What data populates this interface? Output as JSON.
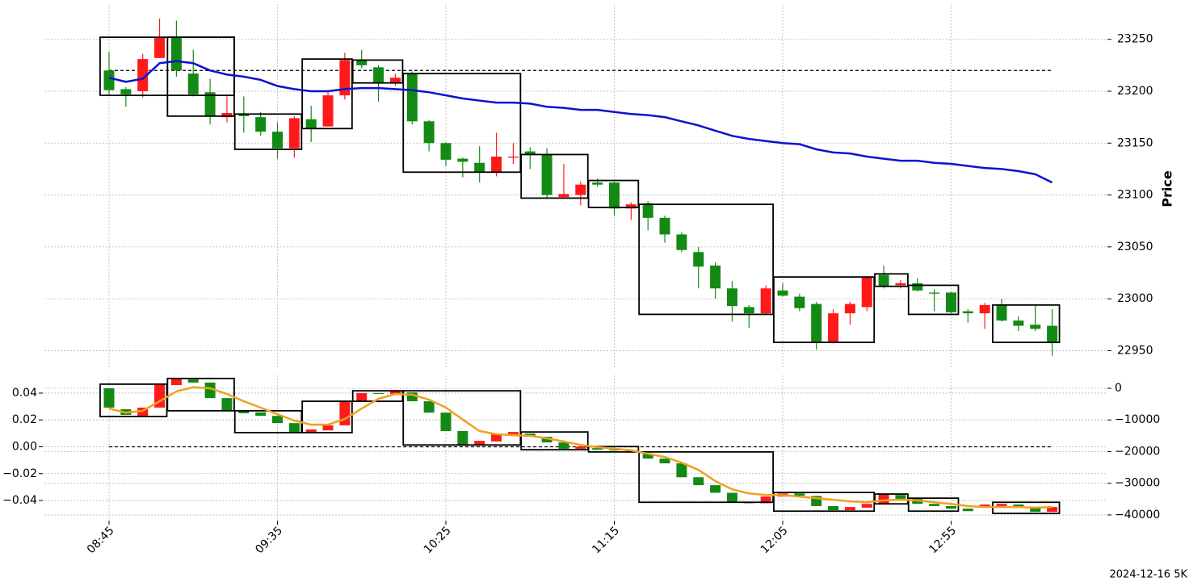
{
  "chart_data": [
    {
      "type": "candlestick",
      "ylabel": "Price",
      "ylim": [
        22934,
        23284
      ],
      "yticks": [
        22950,
        23000,
        23050,
        23100,
        23150,
        23200,
        23250
      ],
      "grid": true,
      "up_color": "#ff1a1a",
      "down_color": "#138a13",
      "open": [
        23220,
        23202,
        23200,
        23232,
        23252,
        23217,
        23199,
        23175,
        23178,
        23175,
        23161,
        23145,
        23173,
        23166,
        23196,
        23230,
        23223,
        23208,
        23217,
        23171,
        23150,
        23135,
        23131,
        23122,
        23136,
        23142,
        23139,
        23098,
        23100,
        23112,
        23112,
        23087,
        23092,
        23078,
        23062,
        23045,
        23032,
        23010,
        22992,
        22986,
        23008,
        23002,
        22995,
        22958,
        22986,
        22992,
        23023,
        23013,
        23015,
        23006,
        23006,
        22988,
        22986,
        22994,
        22979,
        22975,
        22974
      ],
      "high": [
        23238,
        23204,
        23236,
        23270,
        23268,
        23240,
        23212,
        23195,
        23195,
        23180,
        23170,
        23176,
        23186,
        23199,
        23237,
        23240,
        23225,
        23217,
        23219,
        23172,
        23151,
        23136,
        23147,
        23160,
        23150,
        23146,
        23145,
        23130,
        23113,
        23116,
        23113,
        23093,
        23094,
        23080,
        23064,
        23050,
        23035,
        23017,
        22994,
        23013,
        23015,
        23005,
        22997,
        22990,
        22997,
        23022,
        23032,
        23018,
        23020,
        23009,
        23007,
        22990,
        22996,
        23000,
        22983,
        22994,
        22990
      ],
      "low": [
        23196,
        23185,
        23194,
        23232,
        23214,
        23195,
        23168,
        23170,
        23160,
        23157,
        23135,
        23136,
        23151,
        23166,
        23192,
        23222,
        23190,
        23205,
        23168,
        23142,
        23128,
        23117,
        23112,
        23118,
        23130,
        23125,
        23097,
        23097,
        23090,
        23108,
        23080,
        23076,
        23066,
        23054,
        23045,
        23010,
        23000,
        22978,
        22972,
        22985,
        23002,
        22988,
        22951,
        22957,
        22975,
        22988,
        23010,
        23010,
        23007,
        22988,
        22986,
        22977,
        22971,
        22978,
        22969,
        22969,
        22945
      ],
      "close": [
        23201,
        23197,
        23231,
        23252,
        23220,
        23197,
        23176,
        23179,
        23176,
        23161,
        23145,
        23174,
        23164,
        23196,
        23230,
        23225,
        23208,
        23213,
        23171,
        23150,
        23134,
        23132,
        23122,
        23137,
        23137,
        23139,
        23100,
        23101,
        23110,
        23110,
        23087,
        23091,
        23078,
        23062,
        23047,
        23031,
        23010,
        22993,
        22986,
        23010,
        23003,
        22991,
        22958,
        22986,
        22995,
        23021,
        23012,
        23015,
        23008,
        23005,
        22987,
        22986,
        22994,
        22979,
        22974,
        22971,
        22958
      ],
      "line": {
        "color": "#1010d0",
        "values": [
          23213,
          23209,
          23212,
          23227,
          23229,
          23227,
          23220,
          23216,
          23214,
          23211,
          23205,
          23202,
          23200,
          23200,
          23202,
          23203,
          23203,
          23202,
          23201,
          23199,
          23196,
          23193,
          23191,
          23189,
          23189,
          23188,
          23185,
          23184,
          23182,
          23182,
          23180,
          23178,
          23177,
          23175,
          23171,
          23167,
          23162,
          23157,
          23154,
          23152,
          23150,
          23149,
          23144,
          23141,
          23140,
          23137,
          23135,
          23133,
          23133,
          23131,
          23130,
          23128,
          23126,
          23125,
          23123,
          23120,
          23112
        ]
      },
      "hline": {
        "value": 23220,
        "start": 0,
        "end": 56
      },
      "boxes": [
        {
          "start": 0,
          "end": 7,
          "top": 23252,
          "bottom": 23196
        },
        {
          "start": 4,
          "end": 7,
          "top": 23252,
          "bottom": 23176
        },
        {
          "start": 8,
          "end": 11,
          "top": 23178,
          "bottom": 23144
        },
        {
          "start": 12,
          "end": 14,
          "top": 23231,
          "bottom": 23164
        },
        {
          "start": 15,
          "end": 17,
          "top": 23230,
          "bottom": 23208
        },
        {
          "start": 18,
          "end": 24,
          "top": 23217,
          "bottom": 23122
        },
        {
          "start": 25,
          "end": 28,
          "top": 23139,
          "bottom": 23097
        },
        {
          "start": 29,
          "end": 31,
          "top": 23114,
          "bottom": 23088
        },
        {
          "start": 32,
          "end": 39,
          "top": 23091,
          "bottom": 22985
        },
        {
          "start": 40,
          "end": 45,
          "top": 23021,
          "bottom": 22958
        },
        {
          "start": 46,
          "end": 47,
          "top": 23024,
          "bottom": 23012
        },
        {
          "start": 48,
          "end": 50,
          "top": 23013,
          "bottom": 22985
        },
        {
          "start": 53,
          "end": 56,
          "top": 22994,
          "bottom": 22958
        }
      ]
    },
    {
      "type": "candlestick",
      "annotation": "2024-12-16 5K",
      "categories": [
        "08:45",
        null,
        null,
        null,
        null,
        null,
        null,
        null,
        null,
        null,
        "09:35",
        null,
        null,
        null,
        null,
        null,
        null,
        null,
        null,
        null,
        "10:25",
        null,
        null,
        null,
        null,
        null,
        null,
        null,
        null,
        null,
        "11:15",
        null,
        null,
        null,
        null,
        null,
        null,
        null,
        null,
        null,
        "12:05",
        null,
        null,
        null,
        null,
        null,
        null,
        null,
        null,
        null,
        "12:55",
        null,
        null,
        null,
        null,
        null,
        null
      ],
      "ylim": [
        -0.055,
        0.0532
      ],
      "yticks": [
        {
          "value": -0.04,
          "label": "−0.04"
        },
        {
          "value": -0.02,
          "label": "−0.02"
        },
        {
          "value": 0,
          "label": "0.00"
        },
        0.02,
        0.04
      ],
      "y2lim": [
        -41800,
        4080
      ],
      "y2ticks": [
        {
          "value": -40000,
          "label": "−40000"
        },
        {
          "value": -30000,
          "label": "−30000"
        },
        {
          "value": -20000,
          "label": "−20000"
        },
        {
          "value": -10000,
          "label": "−10000"
        },
        0
      ],
      "grid": true,
      "up_color": "#ff1a1a",
      "down_color": "#138a13",
      "open": [
        0,
        -6600,
        -8700,
        -6100,
        1000,
        2800,
        1800,
        -3100,
        -7100,
        -7600,
        -8700,
        -11000,
        -13800,
        -13300,
        -11700,
        -4100,
        -1500,
        -1800,
        -1300,
        -4100,
        -7700,
        -13500,
        -17900,
        -16800,
        -14500,
        -14300,
        -15300,
        -17100,
        -19100,
        -18900,
        -19400,
        -19600,
        -20700,
        -22200,
        -23700,
        -28100,
        -30600,
        -33000,
        -36000,
        -36300,
        -34200,
        -33200,
        -34000,
        -37200,
        -38500,
        -37700,
        -36500,
        -33700,
        -34900,
        -36500,
        -37200,
        -38000,
        -37700,
        -37200,
        -36700,
        -37500,
        -39000
      ],
      "close": [
        -6100,
        -8400,
        -6100,
        1300,
        3100,
        1800,
        -3100,
        -7100,
        -7900,
        -8700,
        -11000,
        -13800,
        -13000,
        -11700,
        -4100,
        -1500,
        -1800,
        -800,
        -4100,
        -7700,
        -13500,
        -17900,
        -16600,
        -14300,
        -13800,
        -15300,
        -17100,
        -19100,
        -18400,
        -19400,
        -19600,
        -20100,
        -22200,
        -23700,
        -28100,
        -30600,
        -33000,
        -36000,
        -36300,
        -34200,
        -33200,
        -33900,
        -37200,
        -38500,
        -37500,
        -36500,
        -33400,
        -34900,
        -36500,
        -37200,
        -38000,
        -38800,
        -36700,
        -36500,
        -37500,
        -39000,
        -37500
      ],
      "line": {
        "color": "#f0a020",
        "values": [
          -6400,
          -7700,
          -7100,
          -4100,
          -1000,
          300,
          0,
          -1800,
          -4100,
          -6100,
          -8200,
          -10200,
          -11500,
          -11500,
          -9700,
          -6400,
          -3300,
          -1800,
          -2000,
          -3600,
          -6100,
          -9900,
          -13500,
          -14500,
          -14800,
          -15000,
          -15800,
          -16800,
          -17900,
          -18600,
          -19100,
          -19600,
          -20700,
          -21700,
          -23500,
          -25800,
          -29300,
          -31900,
          -33200,
          -33700,
          -33700,
          -34200,
          -34700,
          -35200,
          -35700,
          -36000,
          -35400,
          -35200,
          -35400,
          -36000,
          -36500,
          -37200,
          -37500,
          -37500,
          -37500,
          -37700,
          -37500
        ]
      },
      "hline": {
        "value": 0,
        "start": 0,
        "end": 56
      },
      "boxes": [
        {
          "start": 0,
          "end": 3,
          "top": 1300,
          "bottom": -8900
        },
        {
          "start": 4,
          "end": 7,
          "top": 3100,
          "bottom": -7100
        },
        {
          "start": 8,
          "end": 11,
          "top": -7100,
          "bottom": -14000
        },
        {
          "start": 12,
          "end": 14,
          "top": -4100,
          "bottom": -14000
        },
        {
          "start": 15,
          "end": 17,
          "top": -800,
          "bottom": -4100
        },
        {
          "start": 18,
          "end": 24,
          "top": -800,
          "bottom": -17900
        },
        {
          "start": 25,
          "end": 28,
          "top": -13800,
          "bottom": -19400
        },
        {
          "start": 29,
          "end": 31,
          "top": -18400,
          "bottom": -20100
        },
        {
          "start": 32,
          "end": 39,
          "top": -20100,
          "bottom": -36000
        },
        {
          "start": 40,
          "end": 45,
          "top": -32900,
          "bottom": -38800
        },
        {
          "start": 46,
          "end": 47,
          "top": -33400,
          "bottom": -36500
        },
        {
          "start": 48,
          "end": 50,
          "top": -34700,
          "bottom": -38800
        },
        {
          "start": 53,
          "end": 56,
          "top": -36000,
          "bottom": -39500
        }
      ]
    }
  ]
}
